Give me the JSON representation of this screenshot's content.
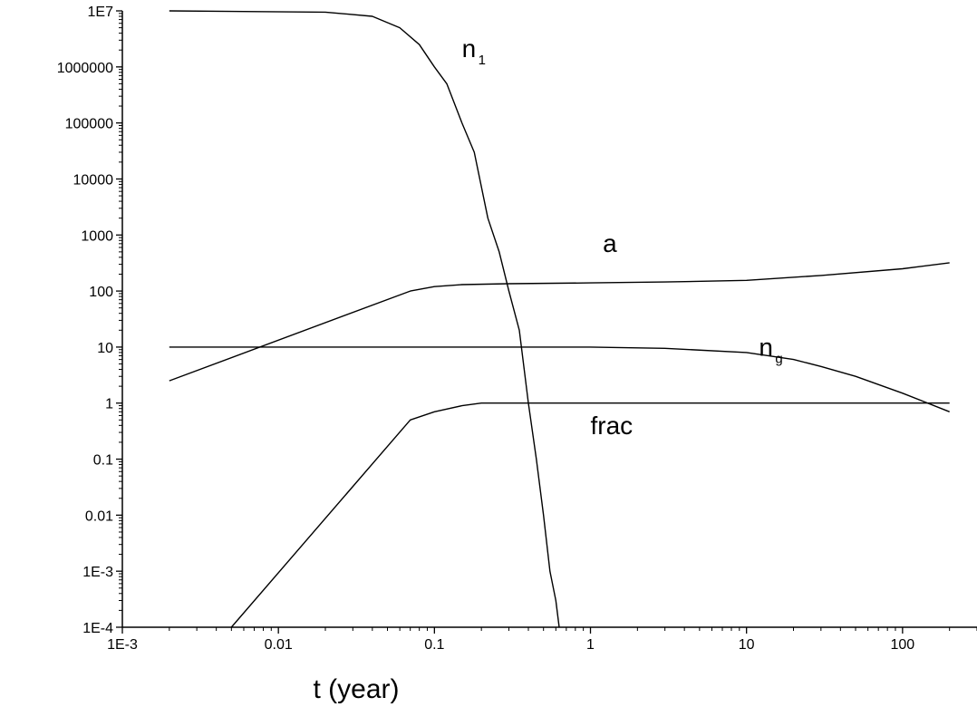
{
  "chart_data": {
    "type": "line",
    "title": "",
    "xlabel": "t (year)",
    "ylabel": "",
    "xscale": "log",
    "yscale": "log",
    "xlim": [
      0.001,
      300
    ],
    "ylim": [
      0.0001,
      10000000
    ],
    "grid": false,
    "x_tick_labels": [
      "1E-3",
      "0.01",
      "0.1",
      "1",
      "10",
      "100"
    ],
    "x_tick_values": [
      0.001,
      0.01,
      0.1,
      1,
      10,
      100
    ],
    "y_tick_labels": [
      "1E7",
      "1000000",
      "100000",
      "10000",
      "1000",
      "100",
      "10",
      "1",
      "0.1",
      "0.01",
      "1E-3",
      "1E-4"
    ],
    "y_tick_values": [
      10000000,
      1000000,
      100000,
      10000,
      1000,
      100,
      10,
      1,
      0.1,
      0.01,
      0.001,
      0.0001
    ],
    "series": [
      {
        "name": "n1",
        "label_main": "n",
        "label_sub": "1",
        "x": [
          0.002,
          0.02,
          0.04,
          0.06,
          0.08,
          0.1,
          0.12,
          0.15,
          0.18,
          0.22,
          0.26,
          0.3,
          0.35,
          0.4,
          0.45,
          0.5,
          0.55,
          0.6,
          0.63
        ],
        "y": [
          10000000,
          9500000,
          8000000,
          5000000,
          2500000,
          1000000,
          500000,
          100000,
          30000,
          2000,
          500,
          100,
          20,
          1,
          0.1,
          0.01,
          0.001,
          0.0003,
          0.0001
        ]
      },
      {
        "name": "a",
        "label_main": "a",
        "label_sub": "",
        "x": [
          0.002,
          0.07,
          0.1,
          0.15,
          0.3,
          1,
          3,
          10,
          30,
          100,
          200
        ],
        "y": [
          2.5,
          100,
          120,
          130,
          135,
          140,
          145,
          155,
          190,
          250,
          320
        ]
      },
      {
        "name": "ng",
        "label_main": "n",
        "label_sub": "g",
        "x": [
          0.002,
          0.01,
          0.1,
          0.5,
          1,
          3,
          10,
          20,
          30,
          50,
          100,
          200
        ],
        "y": [
          10,
          10,
          10,
          10,
          10,
          9.5,
          8,
          6,
          4.5,
          3,
          1.5,
          0.7
        ]
      },
      {
        "name": "frac",
        "label_main": "frac",
        "label_sub": "",
        "x": [
          0.005,
          0.07,
          0.1,
          0.15,
          0.2,
          1,
          10,
          100,
          200
        ],
        "y": [
          0.0001,
          0.5,
          0.7,
          0.9,
          1.0,
          1.0,
          1.0,
          1.0,
          1.0
        ]
      }
    ],
    "annotations": [
      {
        "series": "n1",
        "x": 0.15,
        "y": 1500000
      },
      {
        "series": "a",
        "x": 1.2,
        "y": 500
      },
      {
        "series": "ng",
        "x": 12,
        "y": 7
      },
      {
        "series": "frac",
        "x": 1.0,
        "y": 0.28
      }
    ]
  }
}
